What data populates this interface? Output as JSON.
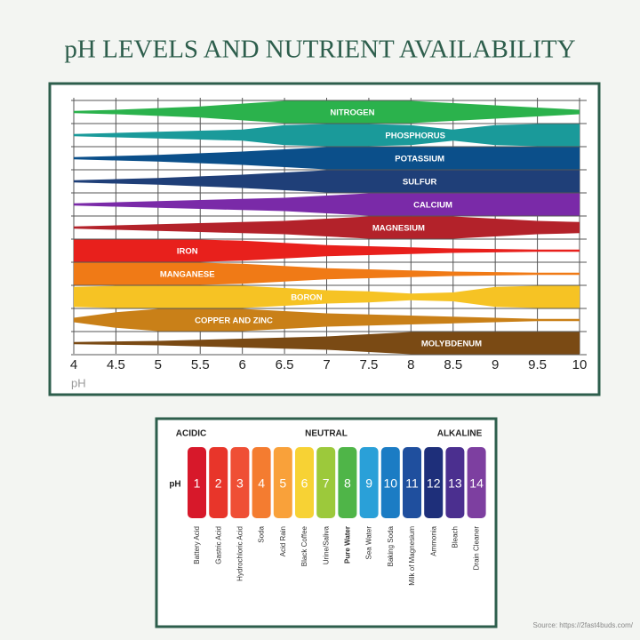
{
  "title": "pH LEVELS AND NUTRIENT AVAILABILITY",
  "chart_data": {
    "type": "band",
    "xlabel": "pH",
    "x": [
      4,
      4.5,
      5,
      5.5,
      6,
      6.5,
      7,
      7.5,
      8,
      8.5,
      9,
      9.5,
      10
    ],
    "xlim": [
      4,
      10
    ],
    "xticks": [
      4,
      4.5,
      5,
      5.5,
      6,
      6.5,
      7,
      7.5,
      8,
      8.5,
      9,
      9.5,
      10
    ],
    "grid": true,
    "series": [
      {
        "name": "NITROGEN",
        "color": "#2bb24c",
        "values": [
          0.1,
          0.2,
          0.35,
          0.5,
          0.75,
          1,
          1,
          1,
          1,
          0.8,
          0.6,
          0.4,
          0.2
        ]
      },
      {
        "name": "PHOSPHORUS",
        "color": "#1a9a9a",
        "values": [
          0.1,
          0.2,
          0.3,
          0.4,
          0.5,
          0.9,
          1,
          1,
          0.9,
          0.5,
          0.9,
          1,
          1
        ]
      },
      {
        "name": "POTASSIUM",
        "color": "#0b4f8a",
        "values": [
          0.1,
          0.2,
          0.3,
          0.45,
          0.6,
          0.8,
          1,
          1,
          1,
          1,
          1,
          1,
          1
        ]
      },
      {
        "name": "SULFUR",
        "color": "#1f3f78",
        "values": [
          0.1,
          0.2,
          0.3,
          0.45,
          0.6,
          0.8,
          1,
          1,
          1,
          1,
          1,
          1,
          1
        ]
      },
      {
        "name": "CALCIUM",
        "color": "#7a2aa8",
        "values": [
          0.1,
          0.2,
          0.3,
          0.4,
          0.5,
          0.6,
          0.8,
          1,
          1,
          1,
          1,
          1,
          1
        ]
      },
      {
        "name": "MAGNESIUM",
        "color": "#b3222a",
        "values": [
          0.1,
          0.2,
          0.3,
          0.4,
          0.5,
          0.6,
          0.8,
          1,
          1,
          1,
          0.8,
          0.6,
          0.5
        ]
      },
      {
        "name": "IRON",
        "color": "#e8201c",
        "values": [
          1,
          1,
          1,
          1,
          0.9,
          0.7,
          0.5,
          0.4,
          0.3,
          0.2,
          0.15,
          0.1,
          0.1
        ]
      },
      {
        "name": "MANGANESE",
        "color": "#f07a16",
        "values": [
          1,
          1,
          1,
          1,
          0.9,
          0.7,
          0.5,
          0.4,
          0.3,
          0.2,
          0.15,
          0.1,
          0.1
        ]
      },
      {
        "name": "BORON",
        "color": "#f6c324",
        "values": [
          0.9,
          1,
          1,
          1,
          1,
          0.8,
          0.6,
          0.5,
          0.3,
          0.4,
          0.9,
          1,
          1
        ]
      },
      {
        "name": "COPPER AND ZINC",
        "color": "#c98018",
        "values": [
          0.2,
          0.7,
          1,
          1,
          1,
          0.8,
          0.6,
          0.5,
          0.4,
          0.3,
          0.2,
          0.1,
          0.1
        ]
      },
      {
        "name": "MOLYBDENUM",
        "color": "#7a4a14",
        "values": [
          0.1,
          0.15,
          0.2,
          0.3,
          0.4,
          0.5,
          0.6,
          0.8,
          1,
          1,
          1,
          1,
          1
        ]
      }
    ]
  },
  "scale": {
    "left": "ACIDIC",
    "center": "NEUTRAL",
    "right": "ALKALINE",
    "axis_label": "pH",
    "levels": [
      {
        "value": 1,
        "color": "#d7182a",
        "example": "Battery Acid"
      },
      {
        "value": 2,
        "color": "#e8352a",
        "example": "Gastric Acid"
      },
      {
        "value": 3,
        "color": "#ef4f35",
        "example": "Hydrochloric Acid"
      },
      {
        "value": 4,
        "color": "#f47c30",
        "example": "Soda"
      },
      {
        "value": 5,
        "color": "#f9a13a",
        "example": "Acid Rain"
      },
      {
        "value": 6,
        "color": "#f7d234",
        "example": "Black Coffee"
      },
      {
        "value": 7,
        "color": "#9cc93b",
        "example": "Urine/Saliva"
      },
      {
        "value": 8,
        "color": "#4fb548",
        "example": "Pure Water"
      },
      {
        "value": 9,
        "color": "#2aa0d8",
        "example": "Sea Water"
      },
      {
        "value": 10,
        "color": "#1b7cc4",
        "example": "Baking Soda"
      },
      {
        "value": 11,
        "color": "#1f4f9e",
        "example": "Milk of Magnesium"
      },
      {
        "value": 12,
        "color": "#1e2f7a",
        "example": "Ammonia"
      },
      {
        "value": 13,
        "color": "#4b2f8f",
        "example": "Bleach"
      },
      {
        "value": 14,
        "color": "#7d3fa0",
        "example": "Drain Cleaner"
      }
    ]
  },
  "source": "Source: https://2fast4buds.com/"
}
